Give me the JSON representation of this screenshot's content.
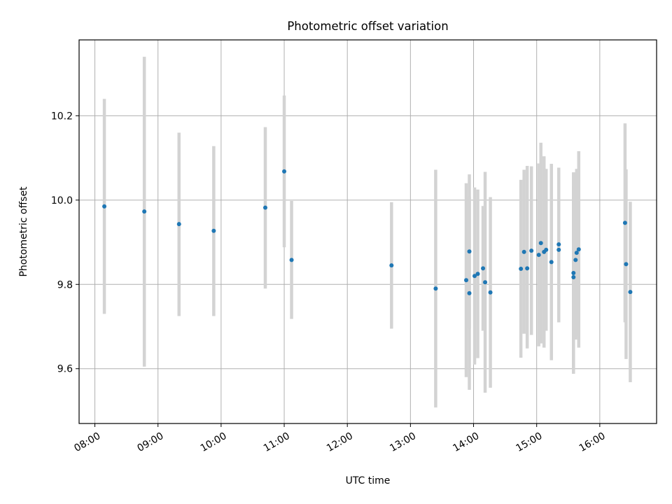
{
  "chart_data": {
    "type": "scatter",
    "title": "Photometric offset variation",
    "xlabel": "UTC time",
    "ylabel": "Photometric offset",
    "x_ticks": [
      "08:00",
      "09:00",
      "10:00",
      "11:00",
      "12:00",
      "13:00",
      "14:00",
      "15:00",
      "16:00"
    ],
    "y_ticks": [
      "9.6",
      "9.8",
      "10.0",
      "10.2"
    ],
    "xlim": [
      "07:45",
      "16:54"
    ],
    "ylim": [
      9.47,
      10.38
    ],
    "grid": true,
    "marker_color": "#1f77b4",
    "errorbar_color": "#d3d3d3",
    "points": [
      {
        "x": "08:09",
        "y": 9.985,
        "ylo": 9.73,
        "yhi": 10.24
      },
      {
        "x": "08:47",
        "y": 9.973,
        "ylo": 9.605,
        "yhi": 10.34
      },
      {
        "x": "09:20",
        "y": 9.943,
        "ylo": 9.725,
        "yhi": 10.16
      },
      {
        "x": "09:53",
        "y": 9.927,
        "ylo": 9.725,
        "yhi": 10.128
      },
      {
        "x": "10:42",
        "y": 9.982,
        "ylo": 9.79,
        "yhi": 10.173
      },
      {
        "x": "11:00",
        "y": 10.068,
        "ylo": 9.888,
        "yhi": 10.248
      },
      {
        "x": "11:07",
        "y": 9.858,
        "ylo": 9.718,
        "yhi": 9.998
      },
      {
        "x": "12:42",
        "y": 9.845,
        "ylo": 9.695,
        "yhi": 9.995
      },
      {
        "x": "13:24",
        "y": 9.79,
        "ylo": 9.508,
        "yhi": 10.072
      },
      {
        "x": "13:53",
        "y": 9.81,
        "ylo": 9.58,
        "yhi": 10.04
      },
      {
        "x": "13:56",
        "y": 9.878,
        "ylo": 9.695,
        "yhi": 10.061
      },
      {
        "x": "13:56",
        "y": 9.779,
        "ylo": 9.55,
        "yhi": 10.008
      },
      {
        "x": "14:01",
        "y": 9.82,
        "ylo": 9.61,
        "yhi": 10.03
      },
      {
        "x": "14:04",
        "y": 9.825,
        "ylo": 9.625,
        "yhi": 10.025
      },
      {
        "x": "14:09",
        "y": 9.838,
        "ylo": 9.69,
        "yhi": 9.986
      },
      {
        "x": "14:11",
        "y": 9.805,
        "ylo": 9.543,
        "yhi": 10.067
      },
      {
        "x": "14:16",
        "y": 9.781,
        "ylo": 9.555,
        "yhi": 10.007
      },
      {
        "x": "14:45",
        "y": 9.837,
        "ylo": 9.626,
        "yhi": 10.048
      },
      {
        "x": "14:48",
        "y": 9.877,
        "ylo": 9.683,
        "yhi": 10.072
      },
      {
        "x": "14:51",
        "y": 9.838,
        "ylo": 9.648,
        "yhi": 10.081
      },
      {
        "x": "14:55",
        "y": 9.88,
        "ylo": 9.68,
        "yhi": 10.08
      },
      {
        "x": "15:02",
        "y": 9.87,
        "ylo": 9.653,
        "yhi": 10.087
      },
      {
        "x": "15:04",
        "y": 9.898,
        "ylo": 9.66,
        "yhi": 10.136
      },
      {
        "x": "15:07",
        "y": 9.877,
        "ylo": 9.65,
        "yhi": 10.104
      },
      {
        "x": "15:09",
        "y": 9.882,
        "ylo": 9.69,
        "yhi": 10.074
      },
      {
        "x": "15:14",
        "y": 9.853,
        "ylo": 9.62,
        "yhi": 10.086
      },
      {
        "x": "15:21",
        "y": 9.895,
        "ylo": 9.713,
        "yhi": 10.077
      },
      {
        "x": "15:21",
        "y": 9.882,
        "ylo": 9.71,
        "yhi": 10.054
      },
      {
        "x": "15:35",
        "y": 9.827,
        "ylo": 9.588,
        "yhi": 10.066
      },
      {
        "x": "15:35",
        "y": 9.817,
        "ylo": 9.6,
        "yhi": 10.034
      },
      {
        "x": "15:37",
        "y": 9.858,
        "ylo": 9.669,
        "yhi": 10.047
      },
      {
        "x": "15:38",
        "y": 9.875,
        "ylo": 9.676,
        "yhi": 10.074
      },
      {
        "x": "15:40",
        "y": 9.883,
        "ylo": 9.65,
        "yhi": 10.116
      },
      {
        "x": "16:24",
        "y": 9.946,
        "ylo": 9.71,
        "yhi": 10.182
      },
      {
        "x": "16:25",
        "y": 9.848,
        "ylo": 9.623,
        "yhi": 10.073
      },
      {
        "x": "16:29",
        "y": 9.782,
        "ylo": 9.568,
        "yhi": 9.996
      }
    ]
  }
}
